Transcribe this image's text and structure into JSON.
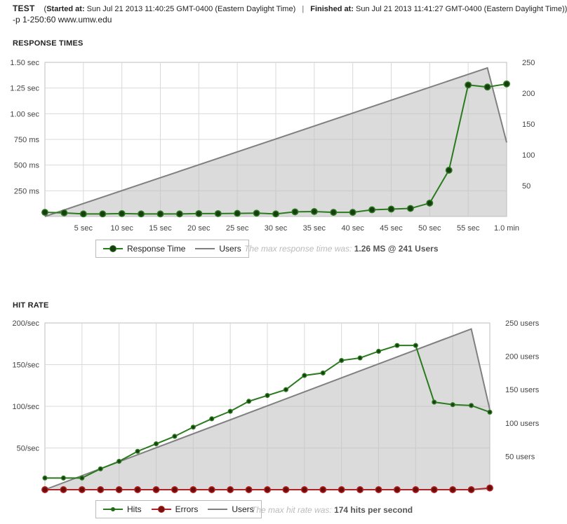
{
  "header": {
    "test_label": "TEST",
    "started_label": "Started at:",
    "started_value": "Sun Jul 21 2013 11:40:25 GMT-0400 (Eastern Daylight Time)",
    "separator": "|",
    "finished_label": "Finished at:",
    "finished_value": "Sun Jul 21 2013 11:41:27 GMT-0400 (Eastern Daylight Time)",
    "close_paren": ")",
    "command": "-p 1-250:60 www.umw.edu"
  },
  "response_section": {
    "title": "RESPONSE TIMES",
    "note_prefix": "The max response time was:",
    "note_value": "1.26 MS @ 241 Users"
  },
  "hits_section": {
    "title": "HIT RATE",
    "note_prefix": "The max hit rate was:",
    "note_value": "174 hits per second"
  },
  "chart_data": [
    {
      "type": "line",
      "title": "RESPONSE TIMES",
      "x": [
        0,
        2.5,
        5,
        7.5,
        10,
        12.5,
        15,
        17.5,
        20,
        22.5,
        25,
        27.5,
        30,
        32.5,
        35,
        37.5,
        40,
        42.5,
        45,
        47.5,
        50,
        52.5,
        55,
        57.5,
        60
      ],
      "x_ticks": [
        5,
        10,
        15,
        20,
        25,
        30,
        35,
        40,
        45,
        50,
        55,
        60
      ],
      "x_tick_labels": [
        "5 sec",
        "10 sec",
        "15 sec",
        "20 sec",
        "25 sec",
        "30 sec",
        "35 sec",
        "40 sec",
        "45 sec",
        "50 sec",
        "55 sec",
        "1.0 min"
      ],
      "xlim": [
        0,
        60
      ],
      "y_left_ticks": [
        250,
        500,
        750,
        1000,
        1250,
        1500
      ],
      "y_left_tick_labels": [
        "250 ms",
        "500 ms",
        "750 ms",
        "1.00 sec",
        "1.25 sec",
        "1.50 sec"
      ],
      "y_left_lim": [
        0,
        1500
      ],
      "y_right_ticks": [
        50,
        100,
        150,
        200,
        250
      ],
      "y_right_tick_labels": [
        "50",
        "100",
        "150",
        "200",
        "250"
      ],
      "y_right_lim": [
        0,
        250
      ],
      "grid": true,
      "legend_position": "bottom",
      "series": [
        {
          "name": "Response Time",
          "axis": "left",
          "color": "#2a7a1e",
          "marker": true,
          "values": [
            40,
            35,
            25,
            25,
            28,
            25,
            25,
            25,
            28,
            28,
            30,
            32,
            25,
            45,
            48,
            40,
            40,
            65,
            72,
            78,
            130,
            450,
            1280,
            1260,
            1290
          ]
        },
        {
          "name": "Users",
          "axis": "right",
          "color": "#808080",
          "marker": false,
          "area": true,
          "x": [
            0,
            57.5,
            60
          ],
          "values": [
            0,
            241,
            120
          ]
        }
      ]
    },
    {
      "type": "line",
      "title": "HIT RATE",
      "x": [
        0,
        2.5,
        5,
        7.5,
        10,
        12.5,
        15,
        17.5,
        20,
        22.5,
        25,
        27.5,
        30,
        32.5,
        35,
        37.5,
        40,
        42.5,
        45,
        47.5,
        50,
        52.5,
        55,
        57.5,
        60
      ],
      "xlim": [
        0,
        60
      ],
      "y_left_ticks": [
        50,
        100,
        150,
        200
      ],
      "y_left_tick_labels": [
        "50/sec",
        "100/sec",
        "150/sec",
        "200/sec"
      ],
      "y_left_lim": [
        0,
        200
      ],
      "y_right_ticks": [
        50,
        100,
        150,
        200,
        250
      ],
      "y_right_tick_labels": [
        "50 users",
        "100 users",
        "150 users",
        "200 users",
        "250 users"
      ],
      "y_right_lim": [
        0,
        250
      ],
      "grid": true,
      "legend_position": "bottom",
      "series": [
        {
          "name": "Hits",
          "axis": "left",
          "color": "#2a7a1e",
          "marker": true,
          "values": [
            14,
            14,
            14,
            25,
            34,
            46,
            55,
            64,
            75,
            85,
            94,
            106,
            113,
            120,
            137,
            140,
            155,
            158,
            166,
            173,
            173,
            105,
            102,
            101,
            93
          ]
        },
        {
          "name": "Errors",
          "axis": "left",
          "color": "#b22222",
          "marker": true,
          "values": [
            0,
            0,
            0,
            0,
            0,
            0,
            0,
            0,
            0,
            0,
            0,
            0,
            0,
            0,
            0,
            0,
            0,
            0,
            0,
            0,
            0,
            0,
            0,
            0,
            2
          ]
        },
        {
          "name": "Users",
          "axis": "right",
          "color": "#808080",
          "marker": false,
          "area": true,
          "x": [
            0,
            57.5,
            60
          ],
          "values": [
            0,
            241,
            120
          ]
        }
      ]
    }
  ]
}
